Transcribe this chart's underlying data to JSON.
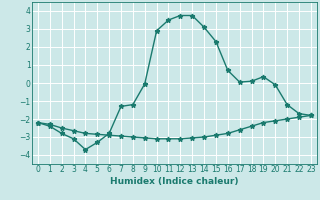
{
  "xlabel": "Humidex (Indice chaleur)",
  "bg_color": "#cce8e8",
  "grid_color": "#ffffff",
  "line_color": "#1a7a6e",
  "xlim": [
    -0.5,
    23.5
  ],
  "ylim": [
    -4.5,
    4.5
  ],
  "xticks": [
    0,
    1,
    2,
    3,
    4,
    5,
    6,
    7,
    8,
    9,
    10,
    11,
    12,
    13,
    14,
    15,
    16,
    17,
    18,
    19,
    20,
    21,
    22,
    23
  ],
  "yticks": [
    -4,
    -3,
    -2,
    -1,
    0,
    1,
    2,
    3,
    4
  ],
  "line1_x": [
    0,
    1,
    2,
    3,
    4,
    5,
    6,
    7,
    8,
    9,
    10,
    11,
    12,
    13,
    14,
    15,
    16,
    17,
    18,
    19,
    20,
    21,
    22,
    23
  ],
  "line1_y": [
    -2.2,
    -2.4,
    -2.8,
    -3.1,
    -3.7,
    -3.3,
    -2.8,
    -1.3,
    -1.2,
    -0.05,
    2.9,
    3.5,
    3.75,
    3.75,
    3.1,
    2.3,
    0.7,
    0.05,
    0.1,
    0.35,
    -0.1,
    -1.2,
    -1.7,
    -1.8
  ],
  "line2_x": [
    0,
    1,
    2,
    3,
    4,
    5,
    6,
    7,
    8,
    9,
    10,
    11,
    12,
    13,
    14,
    15,
    16,
    17,
    18,
    19,
    20,
    21,
    22,
    23
  ],
  "line2_y": [
    -2.2,
    -2.3,
    -2.5,
    -2.65,
    -2.8,
    -2.85,
    -2.9,
    -2.95,
    -3.0,
    -3.05,
    -3.1,
    -3.1,
    -3.1,
    -3.05,
    -3.0,
    -2.9,
    -2.8,
    -2.6,
    -2.4,
    -2.2,
    -2.1,
    -2.0,
    -1.9,
    -1.8
  ]
}
